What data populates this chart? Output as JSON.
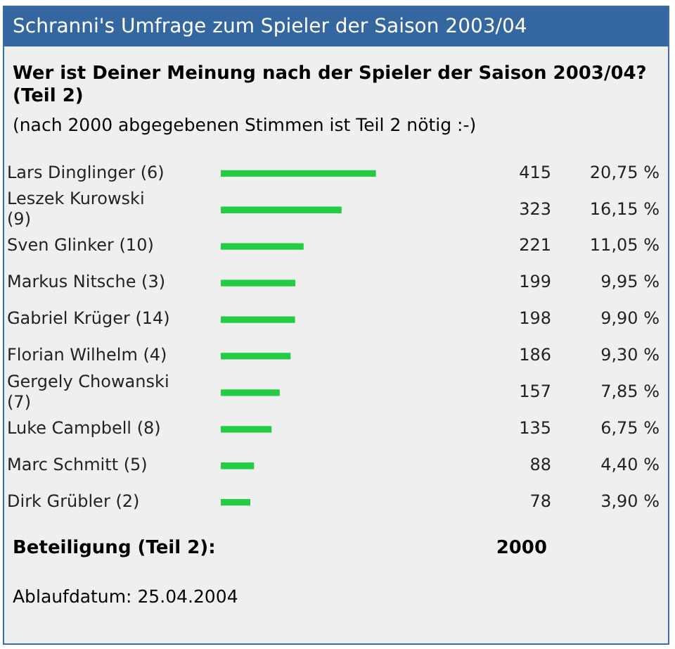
{
  "chart_data": {
    "type": "bar",
    "orientation": "horizontal",
    "title": "Schranni's Umfrage zum Spieler der Saison 2003/04",
    "subtitle": "Wer ist Deiner Meinung nach der Spieler der Saison 2003/04? (Teil 2)",
    "categories": [
      "Lars Dinglinger (6)",
      "Leszek Kurowski (9)",
      "Sven Glinker (10)",
      "Markus Nitsche (3)",
      "Gabriel Krüger (14)",
      "Florian Wilhelm (4)",
      "Gergely Chowanski (7)",
      "Luke Campbell (8)",
      "Marc Schmitt (5)",
      "Dirk Grübler (2)"
    ],
    "values": [
      415,
      323,
      221,
      199,
      198,
      186,
      157,
      135,
      88,
      78
    ],
    "color": "#22cc44",
    "data_labels": true,
    "annotations": [
      "(nach 2000 abgegebenen Stimmen ist Teil 2 nötig :-)",
      "Beteiligung (Teil 2):",
      "2000",
      "Ablaufdatum: 25.04.2004",
      "20,75 %",
      "16,15 %",
      "11,05 %",
      "9,95 %",
      "9,90 %",
      "9,30 %",
      "7,85 %",
      "6,75 %",
      "4,40 %",
      "3,90 %"
    ]
  }
}
